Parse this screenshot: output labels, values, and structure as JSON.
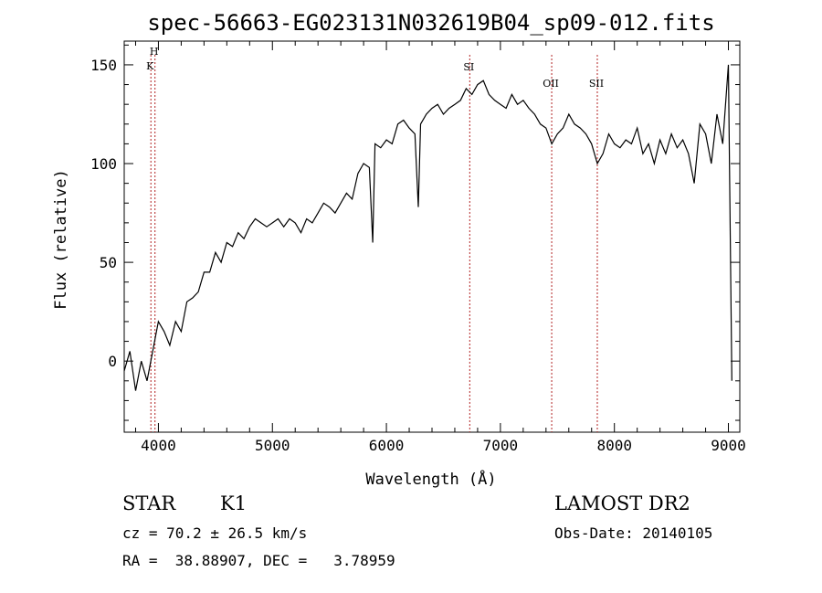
{
  "chart_data": {
    "type": "line",
    "title": "spec-56663-EG023131N032619B04_sp09-012.fits",
    "xlabel": "Wavelength (Å)",
    "ylabel": "Flux (relative)",
    "xlim": [
      3700,
      9100
    ],
    "ylim": [
      -36,
      162
    ],
    "x_ticks": [
      4000,
      5000,
      6000,
      7000,
      8000,
      9000
    ],
    "y_ticks": [
      0,
      50,
      100,
      150
    ],
    "grid": false,
    "series": [
      {
        "x": [
          3700,
          3750,
          3800,
          3850,
          3900,
          3950,
          4000,
          4050,
          4100,
          4150,
          4200,
          4250,
          4300,
          4350,
          4400,
          4450,
          4500,
          4550,
          4600,
          4650,
          4700,
          4750,
          4800,
          4850,
          4900,
          4950,
          5000,
          5050,
          5100,
          5150,
          5200,
          5250,
          5300,
          5350,
          5400,
          5450,
          5500,
          5550,
          5600,
          5650,
          5700,
          5750,
          5800,
          5850,
          5880,
          5900,
          5950,
          6000,
          6050,
          6100,
          6150,
          6200,
          6250,
          6280,
          6300,
          6350,
          6400,
          6450,
          6500,
          6550,
          6600,
          6650,
          6700,
          6750,
          6800,
          6850,
          6900,
          6950,
          7000,
          7050,
          7100,
          7150,
          7200,
          7250,
          7300,
          7350,
          7400,
          7450,
          7500,
          7550,
          7600,
          7650,
          7700,
          7750,
          7800,
          7850,
          7900,
          7950,
          8000,
          8050,
          8100,
          8150,
          8200,
          8250,
          8300,
          8350,
          8400,
          8450,
          8500,
          8550,
          8600,
          8650,
          8700,
          8750,
          8800,
          8850,
          8900,
          8950,
          9000,
          9030
        ],
        "y": [
          -5,
          5,
          -15,
          0,
          -10,
          5,
          20,
          15,
          8,
          20,
          15,
          30,
          32,
          35,
          45,
          45,
          55,
          50,
          60,
          58,
          65,
          62,
          68,
          72,
          70,
          68,
          70,
          72,
          68,
          72,
          70,
          65,
          72,
          70,
          75,
          80,
          78,
          75,
          80,
          85,
          82,
          95,
          100,
          98,
          60,
          110,
          108,
          112,
          110,
          120,
          122,
          118,
          115,
          78,
          120,
          125,
          128,
          130,
          125,
          128,
          130,
          132,
          138,
          135,
          140,
          142,
          135,
          132,
          130,
          128,
          135,
          130,
          132,
          128,
          125,
          120,
          118,
          110,
          115,
          118,
          125,
          120,
          118,
          115,
          110,
          100,
          105,
          115,
          110,
          108,
          112,
          110,
          118,
          105,
          110,
          100,
          112,
          105,
          115,
          108,
          112,
          105,
          90,
          120,
          115,
          100,
          125,
          110,
          150,
          -10
        ]
      }
    ],
    "line_markers": [
      {
        "label": "H",
        "x": 3970
      },
      {
        "label": "K",
        "x": 3934
      },
      {
        "label": "SI",
        "x": 6731
      },
      {
        "label": "OII",
        "x": 7450
      },
      {
        "label": "SII",
        "x": 7850
      }
    ]
  },
  "info": {
    "class": "STAR",
    "subclass": "K1",
    "survey": "LAMOST DR2",
    "cz": "cz = 70.2 ± 26.5 km/s",
    "obs_date": "Obs-Date: 20140105",
    "coords": "RA =  38.88907, DEC =   3.78959"
  }
}
